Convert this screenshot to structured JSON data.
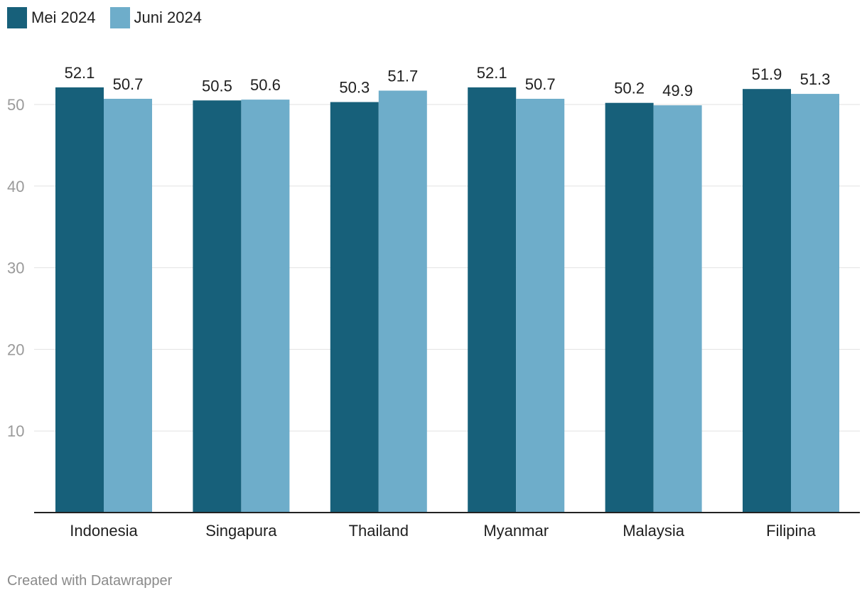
{
  "chart_data": {
    "type": "bar",
    "categories": [
      "Indonesia",
      "Singapura",
      "Thailand",
      "Myanmar",
      "Malaysia",
      "Filipina"
    ],
    "series": [
      {
        "name": "Mei 2024",
        "color": "#17607a",
        "values": [
          52.1,
          50.5,
          50.3,
          52.1,
          50.2,
          51.9
        ]
      },
      {
        "name": "Juni 2024",
        "color": "#6eadca",
        "values": [
          50.7,
          50.6,
          51.7,
          50.7,
          49.9,
          51.3
        ]
      }
    ],
    "yticks": [
      10,
      20,
      30,
      40,
      50
    ],
    "ylim": [
      0,
      54
    ],
    "grid": true,
    "legend_position": "top-left",
    "data_labels": true
  },
  "footer": {
    "credit": "Created with Datawrapper"
  }
}
